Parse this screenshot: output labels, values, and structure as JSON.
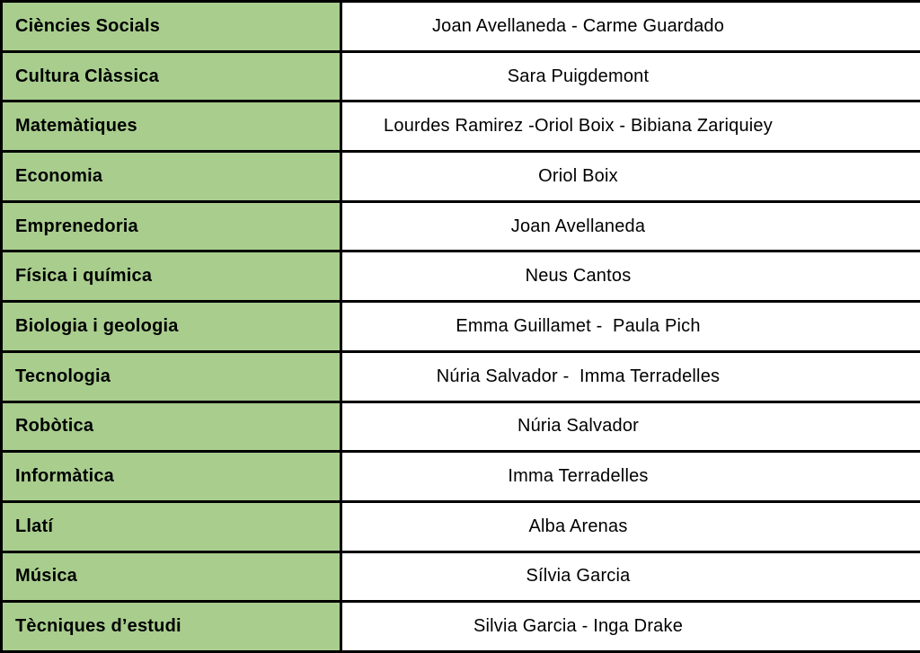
{
  "colors": {
    "subject_cell_bg": "#a8cd8d",
    "teacher_cell_bg": "#ffffff",
    "border": "#000000",
    "text": "#000000"
  },
  "table": {
    "rows": [
      {
        "subject": "Ciències Socials",
        "teachers": "Joan Avellaneda - Carme Guardado"
      },
      {
        "subject": "Cultura Clàssica",
        "teachers": "Sara Puigdemont"
      },
      {
        "subject": "Matemàtiques",
        "teachers": "Lourdes Ramirez -Oriol Boix - Bibiana Zariquiey"
      },
      {
        "subject": "Economia",
        "teachers": "Oriol Boix"
      },
      {
        "subject": "Emprenedoria",
        "teachers": "Joan Avellaneda"
      },
      {
        "subject": "Física i química",
        "teachers": "Neus Cantos"
      },
      {
        "subject": "Biologia i geologia",
        "teachers": "Emma Guillamet -  Paula Pich"
      },
      {
        "subject": "Tecnologia",
        "teachers": "Núria Salvador -  Imma Terradelles"
      },
      {
        "subject": "Robòtica",
        "teachers": "Núria Salvador"
      },
      {
        "subject": "Informàtica",
        "teachers": "Imma Terradelles"
      },
      {
        "subject": "Llatí",
        "teachers": "Alba Arenas"
      },
      {
        "subject": "Música",
        "teachers": "Sílvia Garcia"
      },
      {
        "subject": "Tècniques d’estudi",
        "teachers": "Silvia Garcia - Inga Drake"
      }
    ]
  }
}
